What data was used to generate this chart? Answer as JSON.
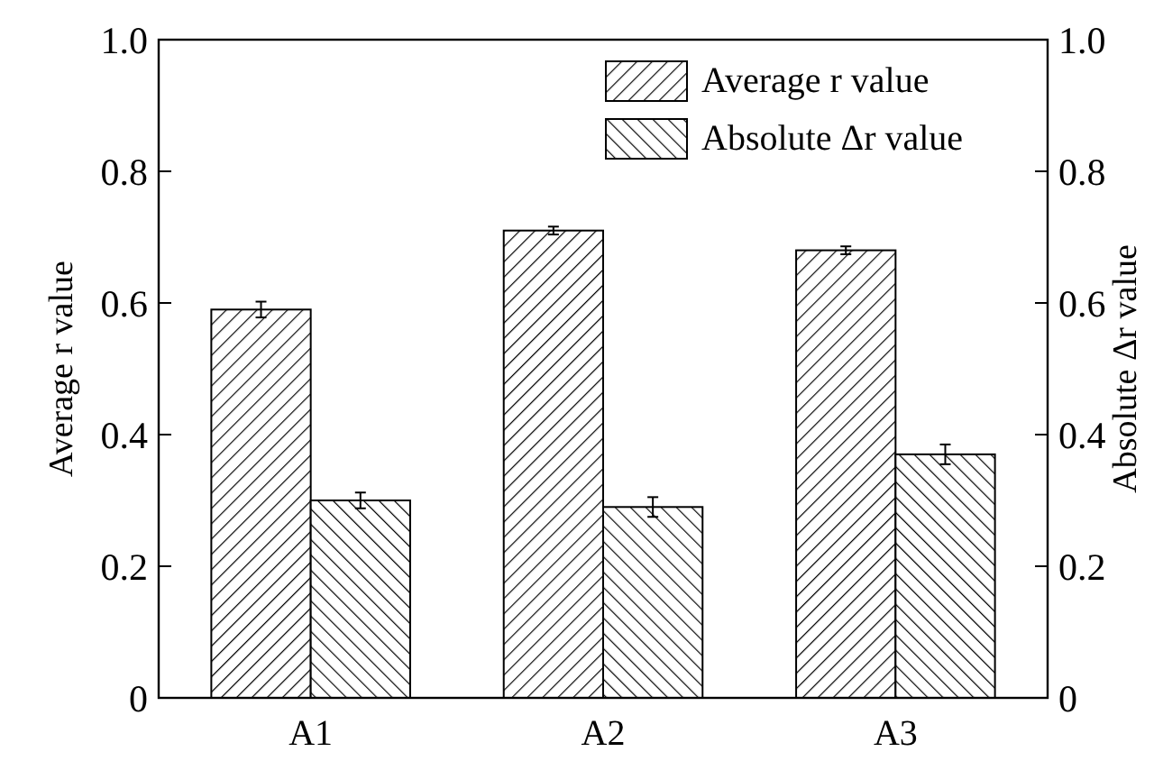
{
  "chart_data": {
    "type": "bar",
    "categories": [
      "A1",
      "A2",
      "A3"
    ],
    "ylabel": "Average r value",
    "y2label": "Absolute Δr value",
    "series": [
      {
        "name": "Average r value",
        "color": "#000000",
        "values": [
          0.59,
          0.71,
          0.68
        ],
        "errors": [
          0.012,
          0.006,
          0.006
        ]
      },
      {
        "name": "Absolute Δr value",
        "color": "#000000",
        "values": [
          0.3,
          0.29,
          0.37
        ],
        "errors": [
          0.012,
          0.015,
          0.015
        ]
      }
    ],
    "ylim": [
      0,
      1
    ],
    "yticks": [
      0,
      0.2,
      0.4,
      0.6,
      0.8,
      {
        "value": 1,
        "label": "1.0"
      }
    ],
    "y2lim": [
      0,
      1
    ],
    "y2ticks": [
      0,
      0.2,
      0.4,
      0.6,
      0.8,
      {
        "value": 1,
        "label": "1.0"
      }
    ],
    "legend": "top right",
    "grid": false
  }
}
